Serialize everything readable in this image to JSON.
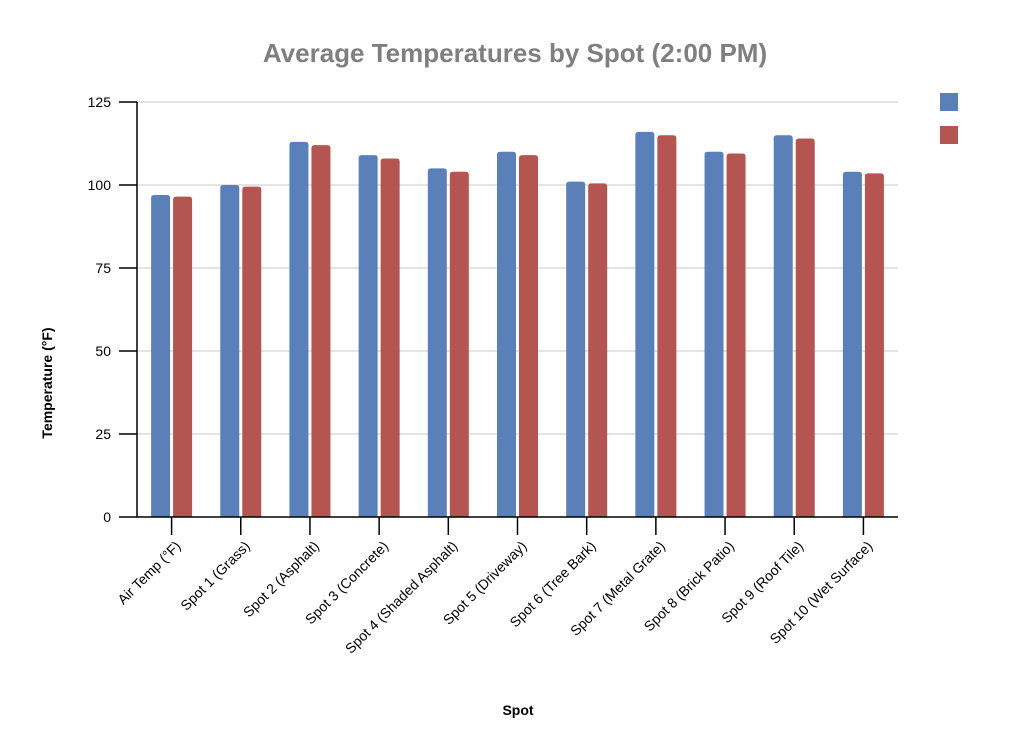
{
  "chart_data": {
    "type": "bar",
    "title": "Average Temperatures by Spot (2:00 PM)",
    "xlabel": "Spot",
    "ylabel": "Temperature (°F)",
    "ylim": [
      0,
      125
    ],
    "yticks": [
      0,
      25,
      50,
      75,
      100,
      125
    ],
    "grid": true,
    "legend_position": "top-right",
    "categories": [
      "Air Temp (°F)",
      "Spot 1 (Grass)",
      "Spot 2 (Asphalt)",
      "Spot 3 (Concrete)",
      "Spot 4 (Shaded Asphalt)",
      "Spot 5 (Driveway)",
      "Spot 6 (Tree Bark)",
      "Spot 7 (Metal Grate)",
      "Spot 8 (Brick Patio)",
      "Spot 9 (Roof Tile)",
      "Spot 10 (Wet Surface)"
    ],
    "series": [
      {
        "color": "#5b80b9",
        "values": [
          97,
          100,
          113,
          109,
          105,
          110,
          101,
          116,
          110,
          115,
          104
        ]
      },
      {
        "color": "#b55551",
        "values": [
          96.5,
          99.5,
          112,
          108,
          104,
          109,
          100.5,
          115,
          109.5,
          114,
          103.5
        ]
      }
    ]
  }
}
